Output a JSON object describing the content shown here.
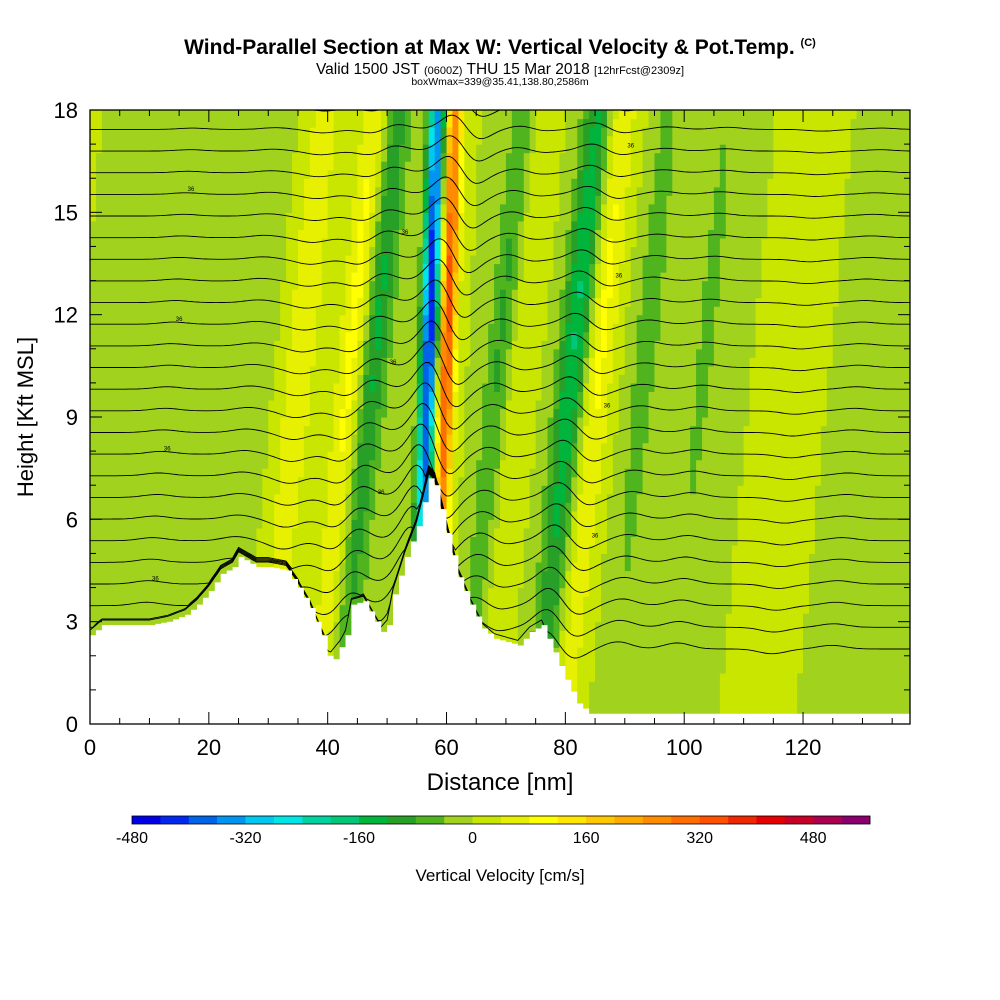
{
  "header": {
    "title": "Wind-Parallel Section at Max W: Vertical Velocity & Pot.Temp.",
    "copyright": "(C)",
    "valid_prefix": "Valid 1500 JST",
    "valid_utc": "(0600Z)",
    "valid_day": "THU 15 Mar 2018",
    "forecast": "[12hrFcst@2309z]",
    "box_info": "boxWmax=339@35.41,138.80,2586m"
  },
  "chart_data": {
    "type": "heatmap",
    "xlabel": "Distance [nm]",
    "ylabel": "Height [Kft MSL]",
    "xlim": [
      0,
      138
    ],
    "ylim": [
      0,
      18
    ],
    "x_ticks": [
      0,
      20,
      40,
      60,
      80,
      100,
      120
    ],
    "y_ticks": [
      0,
      3,
      6,
      9,
      12,
      15,
      18
    ],
    "colorbar": {
      "label": "Vertical Velocity [cm/s]",
      "range": [
        -480,
        520
      ],
      "step": 40,
      "tick_values": [
        -480,
        -320,
        -160,
        0,
        160,
        320,
        480
      ],
      "colors": [
        "#0000e6",
        "#0028f0",
        "#0064e8",
        "#0096f0",
        "#00c8f0",
        "#00e6e6",
        "#00d2a0",
        "#00c878",
        "#00b43c",
        "#28a028",
        "#50b41e",
        "#a0d21e",
        "#c8e600",
        "#e6f000",
        "#ffff00",
        "#ffe600",
        "#ffc800",
        "#ffaa00",
        "#ff8c00",
        "#ff6e00",
        "#ff5000",
        "#f02800",
        "#e60000",
        "#c80028",
        "#aa0050",
        "#8c006e",
        "#6e0082",
        "#500096"
      ]
    },
    "velocity_bands": [
      {
        "x_center": 59.5,
        "peak_cm_s": 339
      },
      {
        "x_center": 56.5,
        "peak_cm_s": -440
      },
      {
        "x_center": 46,
        "peak_cm_s": -150
      },
      {
        "x_center": 43,
        "peak_cm_s": 120
      },
      {
        "x_center": 68,
        "peak_cm_s": -120
      },
      {
        "x_center": 70,
        "peak_cm_s": 80
      },
      {
        "x_center": 80,
        "peak_cm_s": -170
      },
      {
        "x_center": 84,
        "peak_cm_s": 100
      },
      {
        "x_center": 92,
        "peak_cm_s": -60
      },
      {
        "x_center": 102,
        "peak_cm_s": -50
      },
      {
        "x_center": 34,
        "peak_cm_s": 80
      },
      {
        "x_center": 26,
        "peak_cm_s": -40
      },
      {
        "x_center": 12,
        "peak_cm_s": -30
      },
      {
        "x_center": 118,
        "peak_cm_s": 40
      },
      {
        "x_center": 128,
        "peak_cm_s": -30
      }
    ],
    "terrain": {
      "x": [
        0,
        2,
        6,
        10,
        13,
        16,
        18,
        20,
        22,
        24,
        25,
        28,
        30,
        33,
        35,
        37,
        39,
        40,
        41,
        43,
        44,
        46,
        48,
        49,
        50,
        51,
        53,
        55,
        56,
        57,
        58,
        60,
        62,
        64,
        66,
        68,
        70,
        72,
        74,
        76,
        78,
        80,
        82,
        84,
        86,
        88,
        90,
        95,
        100,
        110,
        120,
        130,
        138
      ],
      "kft": [
        2.6,
        2.9,
        2.9,
        2.9,
        3.0,
        3.2,
        3.5,
        3.9,
        4.4,
        4.6,
        4.9,
        4.6,
        4.6,
        4.5,
        4.0,
        3.4,
        2.6,
        2.0,
        1.9,
        2.6,
        3.5,
        3.6,
        3.0,
        2.7,
        2.9,
        3.8,
        4.9,
        5.8,
        6.5,
        7.2,
        7.0,
        5.6,
        4.3,
        3.5,
        2.8,
        2.5,
        2.4,
        2.3,
        2.7,
        2.9,
        2.1,
        1.3,
        0.6,
        0.3,
        0.3,
        0.3,
        0.3,
        0.3,
        0.3,
        0.3,
        0.3,
        0.3,
        0.3
      ]
    },
    "isentropes": {
      "count": 26,
      "label_value": "36"
    }
  }
}
